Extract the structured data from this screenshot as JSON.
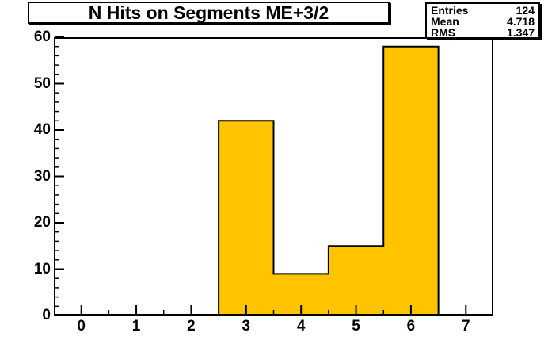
{
  "title": {
    "text": "N Hits on Segments ME+3/2"
  },
  "stats": {
    "rows": [
      {
        "label": "Entries",
        "value": "124"
      },
      {
        "label": "Mean",
        "value": "4.718"
      },
      {
        "label": "RMS",
        "value": "1.347"
      }
    ]
  },
  "chart_data": {
    "type": "bar",
    "title": "N Hits on Segments ME+3/2",
    "xlabel": "",
    "ylabel": "",
    "bin_centers": [
      0,
      1,
      2,
      3,
      4,
      5,
      6,
      7
    ],
    "bin_width": 1,
    "counts": [
      0,
      0,
      0,
      42,
      9,
      15,
      58,
      0
    ],
    "xlim": [
      -0.5,
      7.5
    ],
    "ylim": [
      0,
      60
    ],
    "x_major_ticks": [
      0,
      1,
      2,
      3,
      4,
      5,
      6,
      7
    ],
    "x_minor_step": 0.5,
    "y_major_ticks": [
      0,
      10,
      20,
      30,
      40,
      50,
      60
    ],
    "y_minor_step": 2,
    "grid": false,
    "legend_visible": false,
    "fill_color": "#FFC300",
    "line_color": "#000000",
    "frame_color": "#000000",
    "background_color": "#FFFFFF",
    "stats": {
      "entries": 124,
      "mean": 4.718,
      "rms": 1.347
    }
  }
}
